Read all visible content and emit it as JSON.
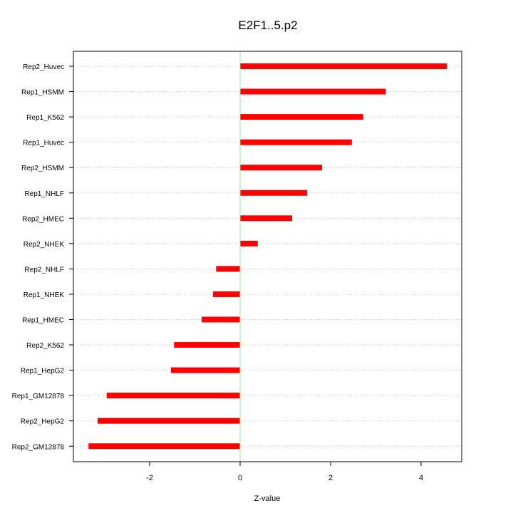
{
  "chart_data": {
    "type": "bar",
    "orientation": "horizontal",
    "title": "E2F1..5.p2",
    "xlabel": "Z-value",
    "ylabel": "",
    "xlim": [
      -3.65,
      4.95
    ],
    "xticks": [
      -2,
      0,
      2,
      4
    ],
    "xtick_labels": [
      "-2",
      "0",
      "2",
      "4"
    ],
    "grid": "horizontal dotted lines at each category",
    "reference_line": {
      "x": 0,
      "color": "#90ee90"
    },
    "bar_color": "#ff0000",
    "categories": [
      "Rep2_Huvec",
      "Rep1_HSMM",
      "Rep1_K562",
      "Rep1_Huvec",
      "Rep2_HSMM",
      "Rep1_NHLF",
      "Rep2_HMEC",
      "Rep2_NHEK",
      "Rep2_NHLF",
      "Rep1_NHEK",
      "Rep1_HMEC",
      "Rep2_K562",
      "Rep1_HepG2",
      "Rep1_GM12878",
      "Rep2_HepG2",
      "Rep2_GM12878"
    ],
    "values": [
      4.57,
      3.22,
      2.72,
      2.47,
      1.81,
      1.48,
      1.15,
      0.39,
      -0.53,
      -0.6,
      -0.85,
      -1.46,
      -1.53,
      -2.95,
      -3.15,
      -3.35
    ]
  }
}
